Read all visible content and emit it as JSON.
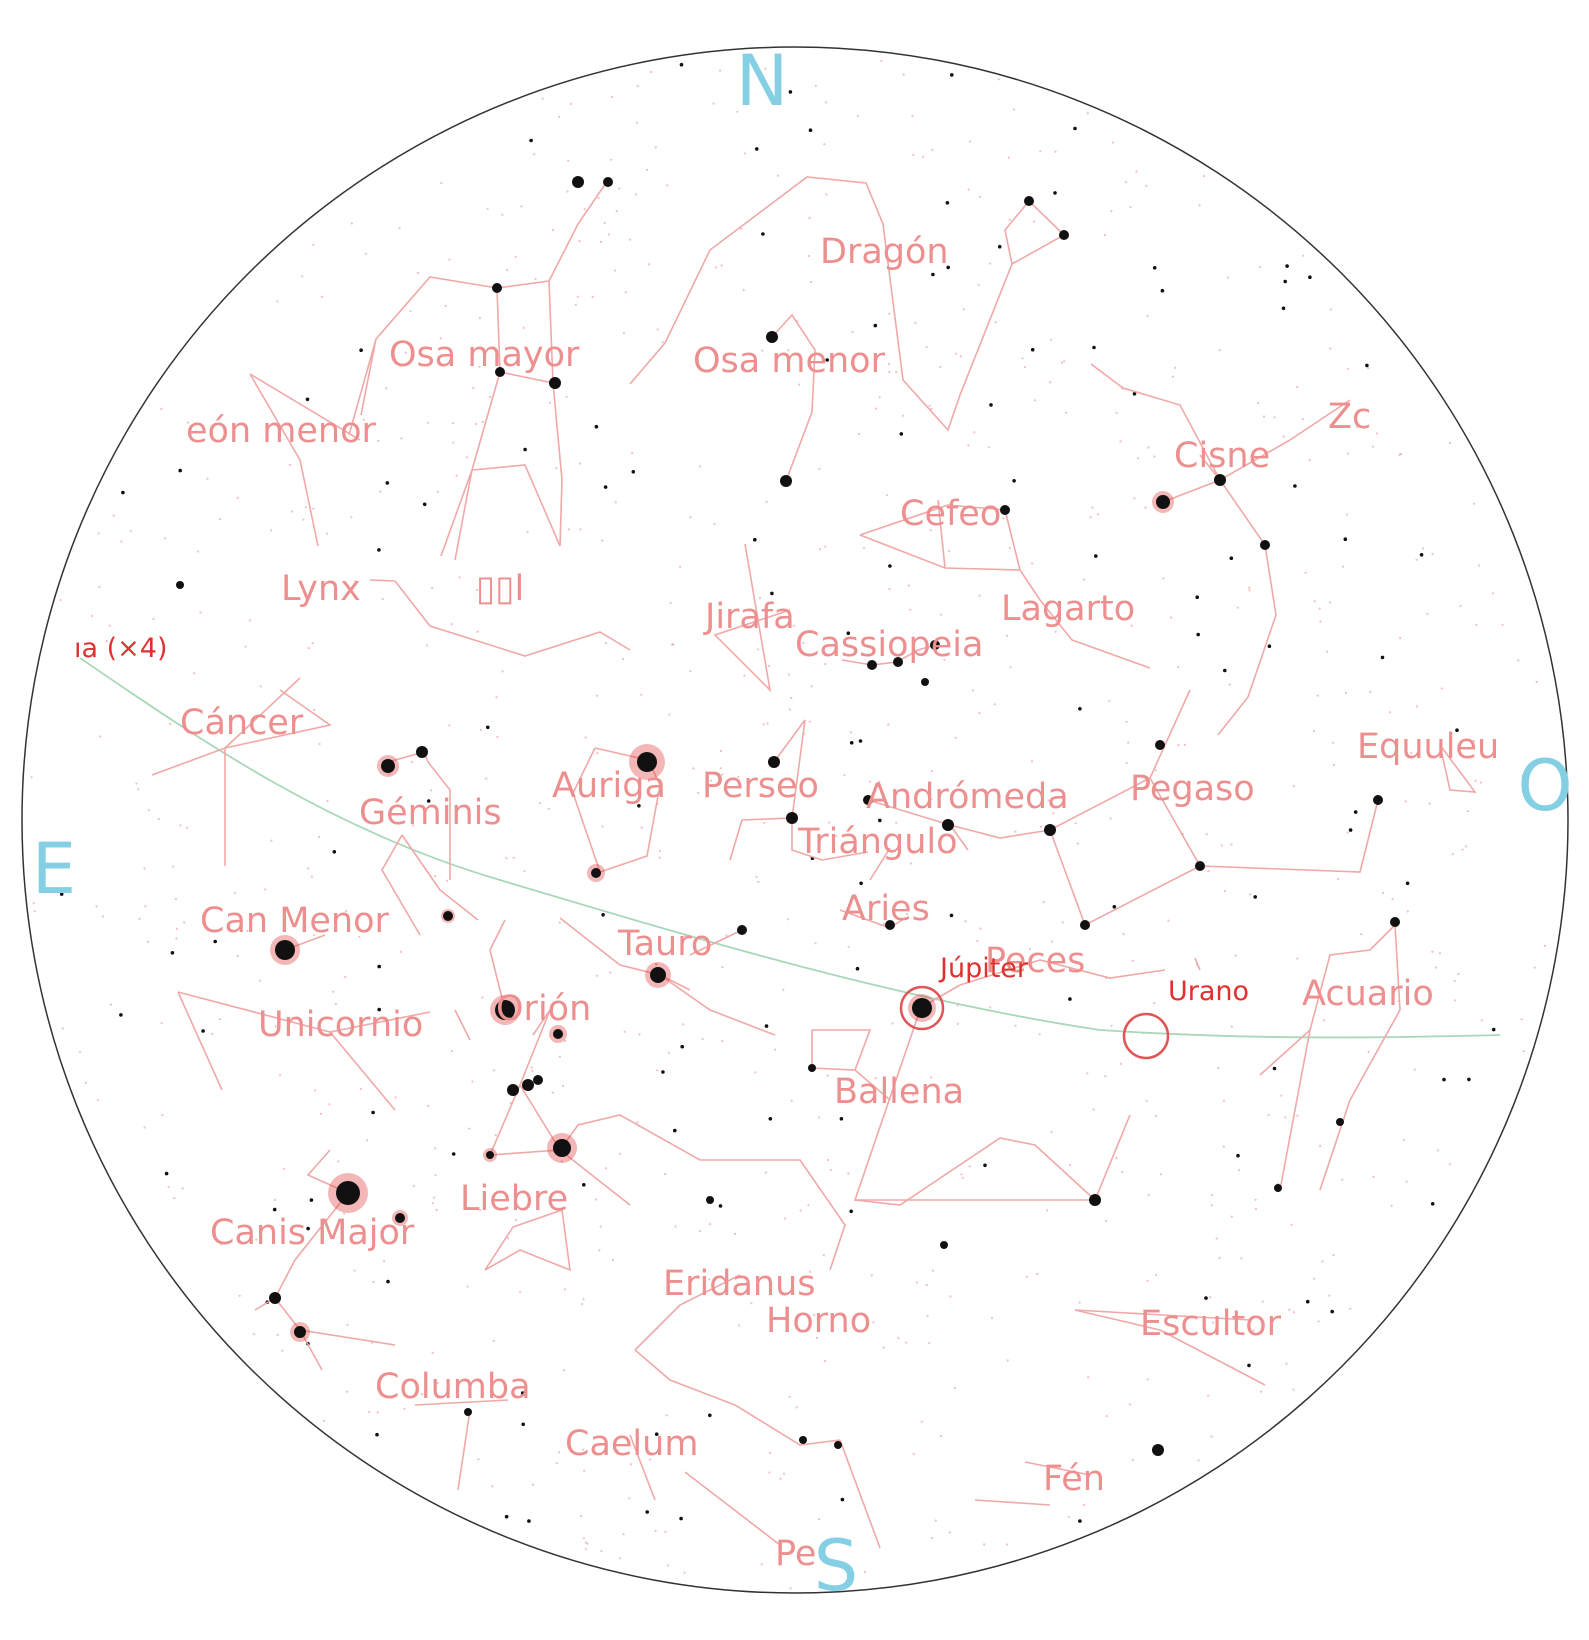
{
  "cardinals": {
    "north": "N",
    "south": "S",
    "east": "E",
    "west": "O"
  },
  "constellations": [
    "Dragón",
    "Osa mayor",
    "Osa menor",
    "eón menor",
    "Cisne",
    "Zc",
    "Cefeo",
    "Lynx",
    "▯▯l",
    "Jirafa",
    "Cassiopeia",
    "Lagarto",
    "Cáncer",
    "Auriga",
    "Perseo",
    "Andrómeda",
    "Pegaso",
    "Equuleu",
    "Géminis",
    "Triángulo",
    "Aries",
    "Can Menor",
    "Tauro",
    "Peces",
    "Acuario",
    "Orión",
    "Unicornio",
    "Ballena",
    "Liebre",
    "Canis Major",
    "Eridanus",
    "Horno",
    "Escultor",
    "Columba",
    "Caelum",
    "Fén",
    "Pe"
  ],
  "planets": {
    "moon_label": "ıa (×4)",
    "jupiter": "Júpiter",
    "uranus": "Urano"
  },
  "colors": {
    "constellation_line": "#f0a8a8",
    "constellation_label": "#ee8f8f",
    "planet_label": "#e03030",
    "cardinal": "#84cfe3",
    "ecliptic": "#a8d8b8",
    "horizon": "#333333"
  }
}
